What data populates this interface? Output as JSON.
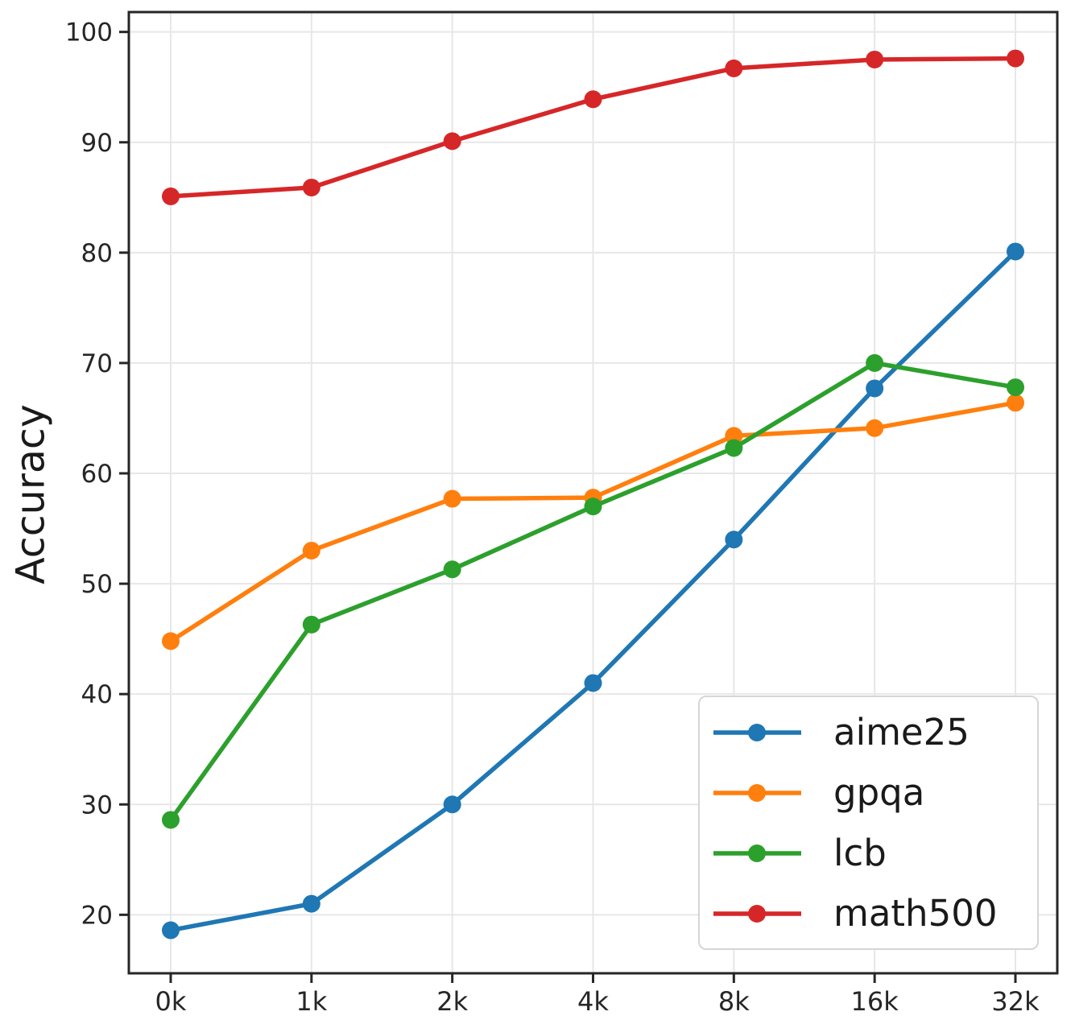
{
  "figure": {
    "background_color": "#ffffff",
    "grid_color": "#e7e7e7",
    "spine_color": "#262626",
    "tick_label_color": "#262626"
  },
  "axes": {
    "x_tick_labels": [
      "0k",
      "1k",
      "2k",
      "4k",
      "8k",
      "16k",
      "32k"
    ],
    "y_tick_labels": [
      "20",
      "30",
      "40",
      "50",
      "60",
      "70",
      "80",
      "90",
      "100"
    ]
  },
  "chart_data": {
    "type": "line",
    "title": "",
    "xlabel": "",
    "ylabel": "Accuracy",
    "categories": [
      "0k",
      "1k",
      "2k",
      "4k",
      "8k",
      "16k",
      "32k"
    ],
    "series": [
      {
        "name": "aime25",
        "color": "#1f77b4",
        "values": [
          18.6,
          21.0,
          30.0,
          41.0,
          54.0,
          67.7,
          80.1
        ]
      },
      {
        "name": "gpqa",
        "color": "#ff7f0e",
        "values": [
          44.8,
          53.0,
          57.7,
          57.8,
          63.4,
          64.1,
          66.4
        ]
      },
      {
        "name": "lcb",
        "color": "#2ca02c",
        "values": [
          28.6,
          46.3,
          51.3,
          57.0,
          62.3,
          70.0,
          67.8
        ]
      },
      {
        "name": "math500",
        "color": "#d62728",
        "values": [
          85.1,
          85.9,
          90.1,
          93.9,
          96.7,
          97.5,
          97.6
        ]
      }
    ],
    "yticks": [
      20,
      30,
      40,
      50,
      60,
      70,
      80,
      90,
      100
    ],
    "ylim": [
      14.7,
      101.8
    ],
    "grid": true,
    "legend_position": "lower right",
    "marker": "circle"
  }
}
